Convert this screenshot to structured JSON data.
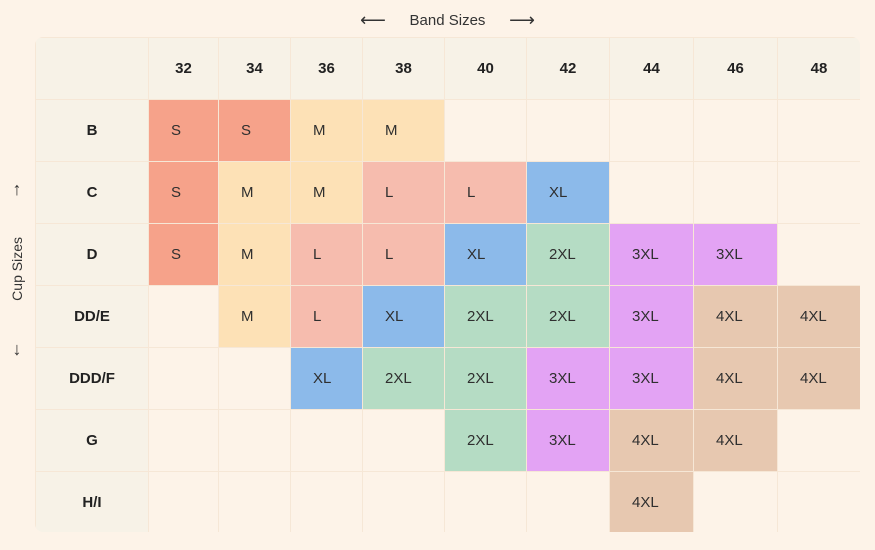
{
  "header": {
    "band_label": "Band Sizes",
    "band_left_arrow": "⟵",
    "band_right_arrow": "⟶",
    "cup_label": "Cup Sizes",
    "cup_up_arrow": "↑",
    "cup_down_arrow": "↓"
  },
  "band_sizes": [
    "32",
    "34",
    "36",
    "38",
    "40",
    "42",
    "44",
    "46",
    "48"
  ],
  "cup_sizes": [
    "B",
    "C",
    "D",
    "DD/E",
    "DDD/F",
    "G",
    "H/I"
  ],
  "grid": [
    [
      "S",
      "S",
      "M",
      "M",
      "",
      "",
      "",
      "",
      ""
    ],
    [
      "S",
      "M",
      "M",
      "L",
      "L",
      "XL",
      "",
      "",
      ""
    ],
    [
      "S",
      "M",
      "L",
      "L",
      "XL",
      "2XL",
      "3XL",
      "3XL",
      ""
    ],
    [
      "",
      "M",
      "L",
      "XL",
      "2XL",
      "2XL",
      "3XL",
      "4XL",
      "4XL"
    ],
    [
      "",
      "",
      "XL",
      "2XL",
      "2XL",
      "3XL",
      "3XL",
      "4XL",
      "4XL"
    ],
    [
      "",
      "",
      "",
      "",
      "2XL",
      "3XL",
      "4XL",
      "4XL",
      ""
    ],
    [
      "",
      "",
      "",
      "",
      "",
      "",
      "4XL",
      "",
      ""
    ]
  ],
  "colors": {
    "S": "#f6a28a",
    "M": "#fde1b6",
    "L": "#f6bcae",
    "XL": "#8cbaea",
    "2XL": "#b5dcc4",
    "3XL": "#e3a3f4",
    "4XL": "#e7c8b0"
  }
}
